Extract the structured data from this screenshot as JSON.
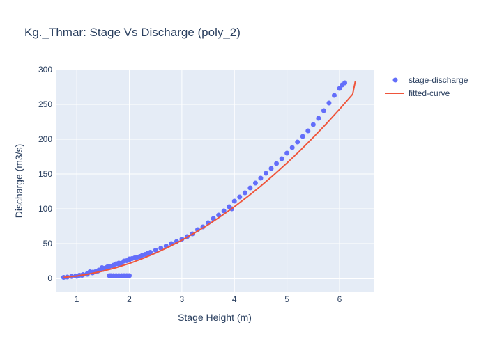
{
  "chart_data": {
    "type": "scatter",
    "title": "Kg._Thmar: Stage Vs Discharge (poly_2)",
    "xlabel": "Stage Height (m)",
    "ylabel": "Discharge (m3/s)",
    "xlim": [
      0.6,
      6.65
    ],
    "ylim": [
      -20,
      300
    ],
    "x_ticks": [
      1,
      2,
      3,
      4,
      5,
      6
    ],
    "y_ticks": [
      0,
      50,
      100,
      150,
      200,
      250,
      300
    ],
    "grid": true,
    "legend_position": "top-right",
    "series": [
      {
        "name": "stage-discharge",
        "kind": "markers",
        "color": "#636efa",
        "points": [
          [
            0.75,
            1.5
          ],
          [
            0.82,
            2.0
          ],
          [
            0.9,
            2.8
          ],
          [
            0.98,
            3.6
          ],
          [
            1.05,
            4.5
          ],
          [
            1.12,
            5.5
          ],
          [
            1.2,
            7.0
          ],
          [
            1.25,
            9.5
          ],
          [
            1.3,
            9.0
          ],
          [
            1.35,
            9.5
          ],
          [
            1.42,
            12.0
          ],
          [
            1.48,
            15.5
          ],
          [
            1.52,
            14.5
          ],
          [
            1.58,
            16.5
          ],
          [
            1.62,
            17.5
          ],
          [
            1.68,
            18.0
          ],
          [
            1.75,
            21.0
          ],
          [
            1.8,
            20.5
          ],
          [
            1.85,
            22.0
          ],
          [
            1.95,
            25.5
          ],
          [
            2.0,
            27.0
          ],
          [
            2.1,
            29.5
          ],
          [
            2.2,
            31.5
          ],
          [
            2.3,
            34.5
          ],
          [
            2.4,
            37.5
          ],
          [
            2.5,
            40.5
          ],
          [
            2.6,
            43.5
          ],
          [
            2.7,
            46.5
          ],
          [
            2.8,
            50.0
          ],
          [
            2.9,
            53.0
          ],
          [
            3.0,
            56.5
          ],
          [
            3.1,
            60.0
          ],
          [
            3.2,
            64.0
          ],
          [
            3.3,
            70.0
          ],
          [
            3.4,
            74.0
          ],
          [
            3.5,
            80.0
          ],
          [
            3.6,
            86.0
          ],
          [
            3.7,
            91.0
          ],
          [
            3.8,
            97.0
          ],
          [
            3.9,
            103.0
          ],
          [
            3.95,
            100.0
          ],
          [
            4.0,
            111.0
          ],
          [
            4.1,
            117.0
          ],
          [
            4.2,
            123.0
          ],
          [
            4.3,
            130.0
          ],
          [
            4.4,
            137.0
          ],
          [
            4.5,
            144.0
          ],
          [
            4.6,
            151.0
          ],
          [
            4.7,
            158.0
          ],
          [
            4.8,
            165.0
          ],
          [
            4.9,
            172.0
          ],
          [
            5.0,
            180.0
          ],
          [
            5.1,
            188.0
          ],
          [
            5.2,
            196.0
          ],
          [
            5.3,
            204.0
          ],
          [
            5.4,
            212.0
          ],
          [
            5.5,
            221.0
          ],
          [
            5.6,
            230.0
          ],
          [
            5.7,
            241.0
          ],
          [
            5.8,
            252.0
          ],
          [
            5.9,
            263.0
          ],
          [
            6.0,
            273.0
          ],
          [
            6.05,
            278.0
          ],
          [
            6.1,
            281.0
          ],
          [
            1.62,
            4.0
          ],
          [
            1.65,
            4.0
          ],
          [
            1.7,
            4.0
          ],
          [
            1.75,
            4.0
          ],
          [
            1.8,
            4.0
          ],
          [
            1.85,
            4.0
          ],
          [
            1.9,
            4.0
          ],
          [
            1.95,
            4.0
          ],
          [
            2.0,
            4.0
          ],
          [
            1.0,
            3.0
          ],
          [
            1.1,
            4.5
          ],
          [
            1.2,
            6.0
          ],
          [
            1.3,
            8.0
          ],
          [
            1.4,
            10.5
          ],
          [
            1.5,
            13.0
          ],
          [
            1.6,
            16.0
          ],
          [
            1.7,
            19.0
          ],
          [
            1.8,
            22.0
          ],
          [
            1.9,
            25.0
          ],
          [
            2.0,
            28.0
          ],
          [
            2.05,
            28.5
          ],
          [
            2.15,
            30.5
          ],
          [
            2.25,
            33.5
          ],
          [
            2.35,
            36.0
          ]
        ]
      },
      {
        "name": "fitted-curve",
        "kind": "line",
        "color": "#EF553B",
        "points": [
          [
            0.75,
            1.5
          ],
          [
            1.0,
            3.5
          ],
          [
            1.25,
            6.6
          ],
          [
            1.5,
            10.6
          ],
          [
            1.75,
            15.5
          ],
          [
            2.0,
            21.5
          ],
          [
            2.25,
            28.5
          ],
          [
            2.5,
            36.4
          ],
          [
            2.75,
            45.2
          ],
          [
            3.0,
            55.0
          ],
          [
            3.25,
            65.7
          ],
          [
            3.5,
            77.2
          ],
          [
            3.75,
            89.7
          ],
          [
            4.0,
            103.1
          ],
          [
            4.25,
            117.4
          ],
          [
            4.5,
            132.6
          ],
          [
            4.75,
            148.7
          ],
          [
            5.0,
            165.8
          ],
          [
            5.25,
            183.7
          ],
          [
            5.5,
            202.6
          ],
          [
            5.75,
            222.3
          ],
          [
            6.0,
            243.0
          ],
          [
            6.25,
            264.6
          ],
          [
            6.3,
            283.0
          ]
        ]
      }
    ]
  }
}
